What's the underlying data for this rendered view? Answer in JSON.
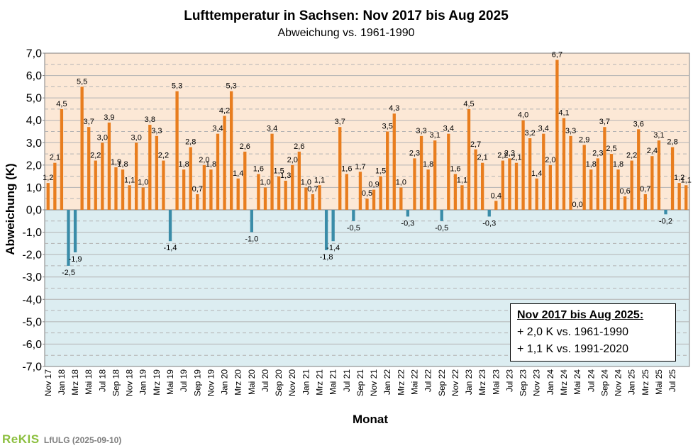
{
  "chart_data": {
    "type": "bar",
    "title": "Lufttemperatur in Sachsen: Nov 2017 bis Aug 2025",
    "subtitle": "Abweichung vs. 1961-1990",
    "xlabel": "Monat",
    "ylabel": "Abweichung (K)",
    "ylim": [
      -7.0,
      7.0
    ],
    "yticks": [
      "7,0",
      "6,0",
      "5,0",
      "4,0",
      "3,0",
      "2,0",
      "1,0",
      "0,0",
      "-1,0",
      "-2,0",
      "-3,0",
      "-4,0",
      "-5,0",
      "-6,0",
      "-7,0"
    ],
    "xticks": [
      "Nov 17",
      "Jan 18",
      "Mrz 18",
      "Mai 18",
      "Jul 18",
      "Sep 18",
      "Nov 18",
      "Jan 19",
      "Mrz 19",
      "Mai 19",
      "Jul 19",
      "Sep 19",
      "Nov 19",
      "Jan 20",
      "Mrz 20",
      "Mai 20",
      "Jul 20",
      "Sep 20",
      "Nov 20",
      "Jan 21",
      "Mrz 21",
      "Mai 21",
      "Jul 21",
      "Sep 21",
      "Nov 21",
      "Jan 22",
      "Mrz 22",
      "Mai 22",
      "Jul 22",
      "Sep 22",
      "Nov 22",
      "Jan 23",
      "Mrz 23",
      "Mai 23",
      "Jul 23",
      "Sep 23",
      "Nov 23",
      "Jan 24",
      "Mrz 24",
      "Mai 24",
      "Jul 24",
      "Sep 24",
      "Nov 24",
      "Jan 25",
      "Mrz 25",
      "Mai 25",
      "Jul 25"
    ],
    "values": [
      1.2,
      2.1,
      4.5,
      -2.5,
      -1.9,
      5.5,
      3.7,
      2.2,
      3.0,
      3.9,
      1.9,
      1.8,
      1.1,
      3.0,
      1.0,
      3.8,
      3.3,
      2.2,
      -1.4,
      5.3,
      1.8,
      2.8,
      0.7,
      2.0,
      1.8,
      3.4,
      4.2,
      5.3,
      1.4,
      2.6,
      -1.0,
      1.6,
      1.0,
      3.4,
      1.5,
      1.3,
      2.0,
      2.6,
      1.0,
      0.7,
      1.1,
      -1.8,
      -1.4,
      3.7,
      1.6,
      -0.5,
      1.7,
      0.5,
      0.9,
      1.5,
      3.5,
      4.3,
      1.0,
      -0.3,
      2.3,
      3.3,
      1.8,
      3.1,
      -0.5,
      3.4,
      1.6,
      1.1,
      4.5,
      2.7,
      2.1,
      -0.3,
      0.4,
      2.2,
      2.3,
      2.1,
      4.0,
      3.2,
      1.4,
      3.4,
      2.0,
      6.7,
      4.1,
      3.3,
      0.0,
      2.9,
      1.8,
      2.3,
      3.7,
      2.5,
      1.8,
      0.6,
      2.2,
      3.6,
      0.7,
      2.4,
      3.1,
      -0.2,
      2.8,
      1.2,
      1.1
    ],
    "labels": [
      "1,2",
      "2,1",
      "4,5",
      "-2,5",
      "-1,9",
      "5,5",
      "3,7",
      "2,2",
      "3,0",
      "3,9",
      "1,9",
      "1,8",
      "1,1",
      "3,0",
      "1,0",
      "3,8",
      "3,3",
      "2,2",
      "-1,4",
      "5,3",
      "1,8",
      "2,8",
      "0,7",
      "2,0",
      "1,8",
      "3,4",
      "4,2",
      "5,3",
      "1,4",
      "2,6",
      "-1,0",
      "1,6",
      "1,0",
      "3,4",
      "1,5",
      "1,3",
      "2,0",
      "2,6",
      "1,0",
      "0,7",
      "1,1",
      "-1,8",
      "-1,4",
      "3,7",
      "1,6",
      "-0,5",
      "1,7",
      "0,5",
      "0,9",
      "1,5",
      "3,5",
      "4,3",
      "1,0",
      "-0,3",
      "2,3",
      "3,3",
      "1,8",
      "3,1",
      "-0,5",
      "3,4",
      "1,6",
      "1,1",
      "4,5",
      "2,7",
      "2,1",
      "-0,3",
      "0,4",
      "2,2",
      "2,3",
      "2,1",
      "4,0",
      "3,2",
      "1,4",
      "3,4",
      "2,0",
      "6,7",
      "4,1",
      "3,3",
      "0,0",
      "2,9",
      "1,8",
      "2,3",
      "3,7",
      "2,5",
      "1,8",
      "0,6",
      "2,2",
      "3,6",
      "0,7",
      "2,4",
      "3,1",
      "-0,2",
      "2,8",
      "1,2",
      "1,1"
    ],
    "colors": {
      "positive": "#e87d1e",
      "negative": "#3a8ca8",
      "bg_positive": "#fce8d6",
      "bg_negative": "#dcedf1",
      "grid": "#b3b3b3"
    }
  },
  "summary": {
    "title": "Nov 2017 bis Aug 2025:",
    "line1": "+ 2,0 K vs. 1961-1990",
    "line2": "+ 1,1 K vs. 1991-2020"
  },
  "footer": {
    "logo": "ReKIS",
    "source": "LfULG",
    "date": "(2025-09-10)"
  }
}
